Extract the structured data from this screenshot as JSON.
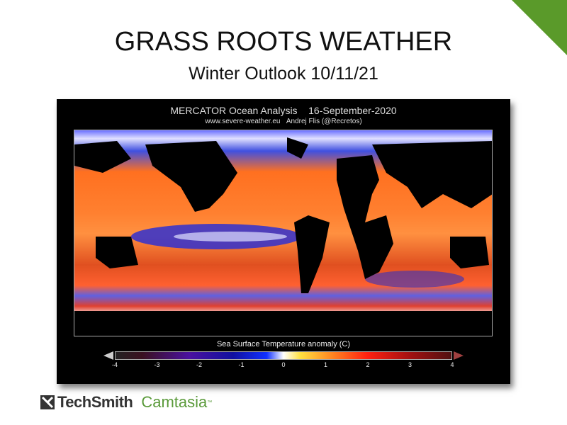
{
  "slide": {
    "title": "GRASS ROOTS WEATHER",
    "subtitle": "Winter Outlook 10/11/21",
    "accent_color": "#5a9a2a"
  },
  "map": {
    "title": "MERCATOR Ocean Analysis",
    "date": "16-September-2020",
    "source": "www.severe-weather.eu",
    "author": "Andrej Flis (@Recretos)",
    "colorbar": {
      "label": "Sea Surface Temperature anomaly (C)",
      "ticks": [
        "-4",
        "-3",
        "-2",
        "-1",
        "0",
        "1",
        "2",
        "3",
        "4"
      ],
      "range": [
        -4,
        4
      ]
    }
  },
  "watermark": {
    "brand": "TechSmith",
    "product": "Camtasia",
    "tm": "™"
  }
}
